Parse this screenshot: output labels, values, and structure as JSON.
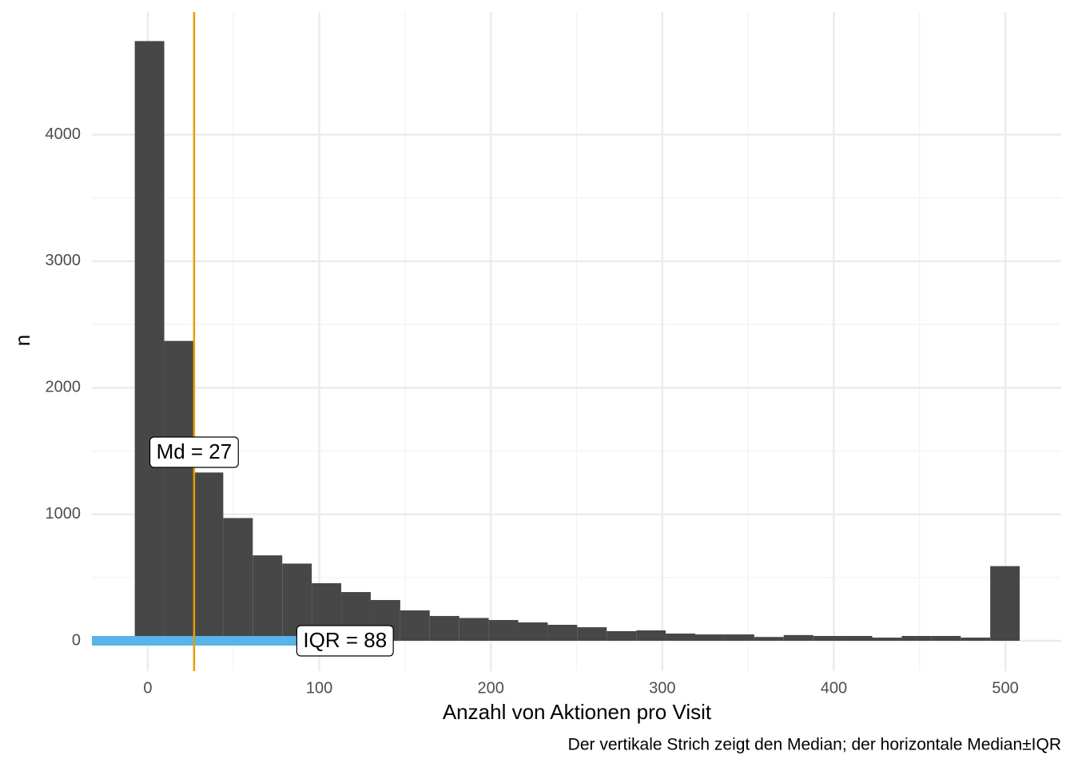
{
  "chart_data": {
    "type": "histogram",
    "xlabel": "Anzahl von Aktionen pro Visit",
    "ylabel": "n",
    "caption": "Der vertikale Strich zeigt den Median; der horizontale Median±IQR",
    "bins": [
      -7.6,
      9.6,
      26.8,
      44.0,
      61.2,
      78.4,
      95.6,
      112.8,
      130.0,
      147.2,
      164.4,
      181.6,
      198.8,
      216.0,
      233.2,
      250.4,
      267.6,
      284.8,
      302.0,
      319.2,
      336.4,
      353.6,
      370.8,
      388.0,
      405.2,
      422.4,
      439.6,
      456.8,
      474.0,
      491.2,
      508.4
    ],
    "values": [
      4740,
      2370,
      1330,
      970,
      675,
      610,
      455,
      385,
      322,
      240,
      196,
      180,
      164,
      145,
      126,
      107,
      76,
      82,
      57,
      50,
      50,
      30,
      45,
      38,
      38,
      25,
      38,
      38,
      25,
      590
    ],
    "color": "#474747",
    "median": 27,
    "median_label": "Md = 27",
    "median_color": "#E69F00",
    "iqr": 88,
    "iqr_label": "IQR = 88",
    "iqr_color": "#56B4E9",
    "xlim": [
      -32.6,
      532.6
    ],
    "ylim": [
      -240,
      4970
    ],
    "xticks": [
      0,
      100,
      200,
      300,
      400,
      500
    ],
    "yticks": [
      0,
      1000,
      2000,
      3000,
      4000
    ],
    "grid": true
  }
}
